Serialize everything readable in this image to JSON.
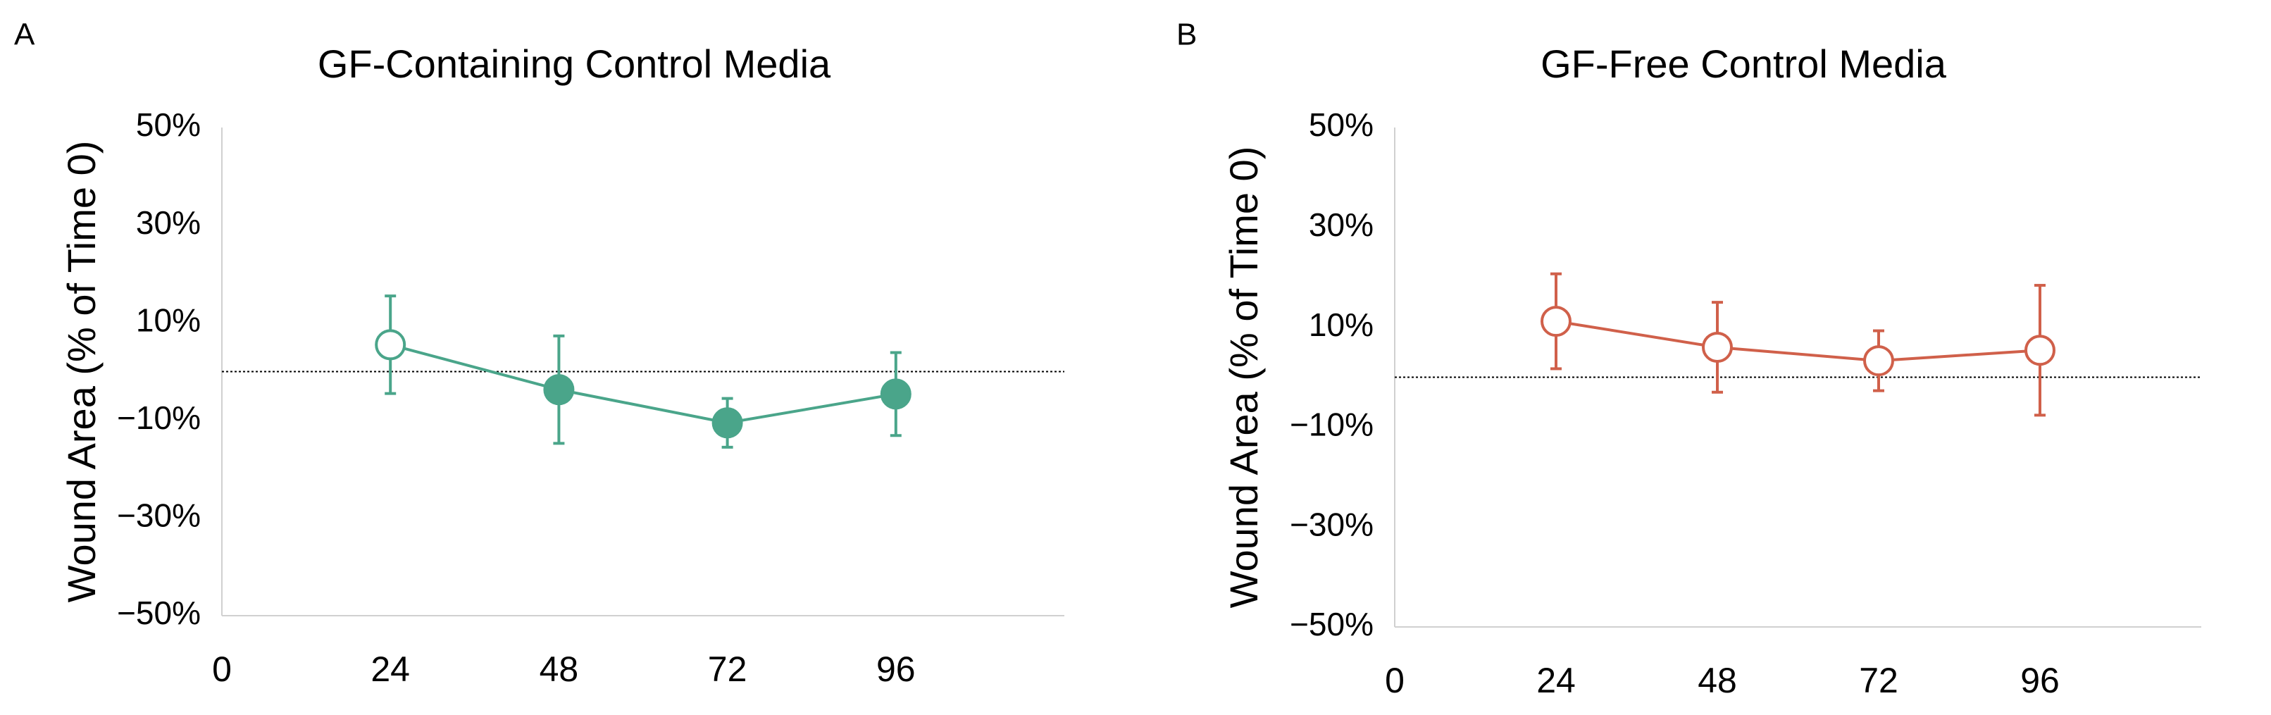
{
  "chart_data": [
    {
      "type": "line",
      "panel_label": "A",
      "title": "GF-Containing Control Media",
      "y_label": "Wound Area (% of Time 0)",
      "x": [
        24,
        48,
        72,
        96
      ],
      "xlim": [
        0,
        120
      ],
      "xticks": [
        0,
        24,
        48,
        72,
        96
      ],
      "ylim": [
        -50,
        50
      ],
      "yticks": [
        {
          "value": -50,
          "label": "−50%"
        },
        {
          "value": -30,
          "label": "−30%"
        },
        {
          "value": -10,
          "label": "−10%"
        },
        {
          "value": 10,
          "label": "10%"
        },
        {
          "value": 30,
          "label": "30%"
        },
        {
          "value": 50,
          "label": "50%"
        }
      ],
      "reference_line": 0,
      "series": [
        {
          "color": "#4aa58a",
          "values": [
            5.5,
            -3.7,
            -10.5,
            -4.6
          ],
          "errors": [
            10,
            11,
            5,
            8.5
          ],
          "filled": [
            false,
            true,
            true,
            true
          ]
        }
      ]
    },
    {
      "type": "line",
      "panel_label": "B",
      "title": "GF-Free Control Media",
      "y_label": "Wound Area (% of Time 0)",
      "x": [
        24,
        48,
        72,
        96
      ],
      "xlim": [
        0,
        120
      ],
      "xticks": [
        0,
        24,
        48,
        72,
        96
      ],
      "ylim": [
        -50,
        50
      ],
      "yticks": [
        {
          "value": -50,
          "label": "−50%"
        },
        {
          "value": -30,
          "label": "−30%"
        },
        {
          "value": -10,
          "label": "−10%"
        },
        {
          "value": 10,
          "label": "10%"
        },
        {
          "value": 30,
          "label": "30%"
        },
        {
          "value": 50,
          "label": "50%"
        }
      ],
      "reference_line": 0,
      "series": [
        {
          "color": "#d0604a",
          "values": [
            11.2,
            6,
            3.3,
            5.4
          ],
          "errors": [
            9.5,
            9,
            6,
            13
          ],
          "filled": [
            false,
            false,
            false,
            false
          ]
        }
      ]
    }
  ]
}
